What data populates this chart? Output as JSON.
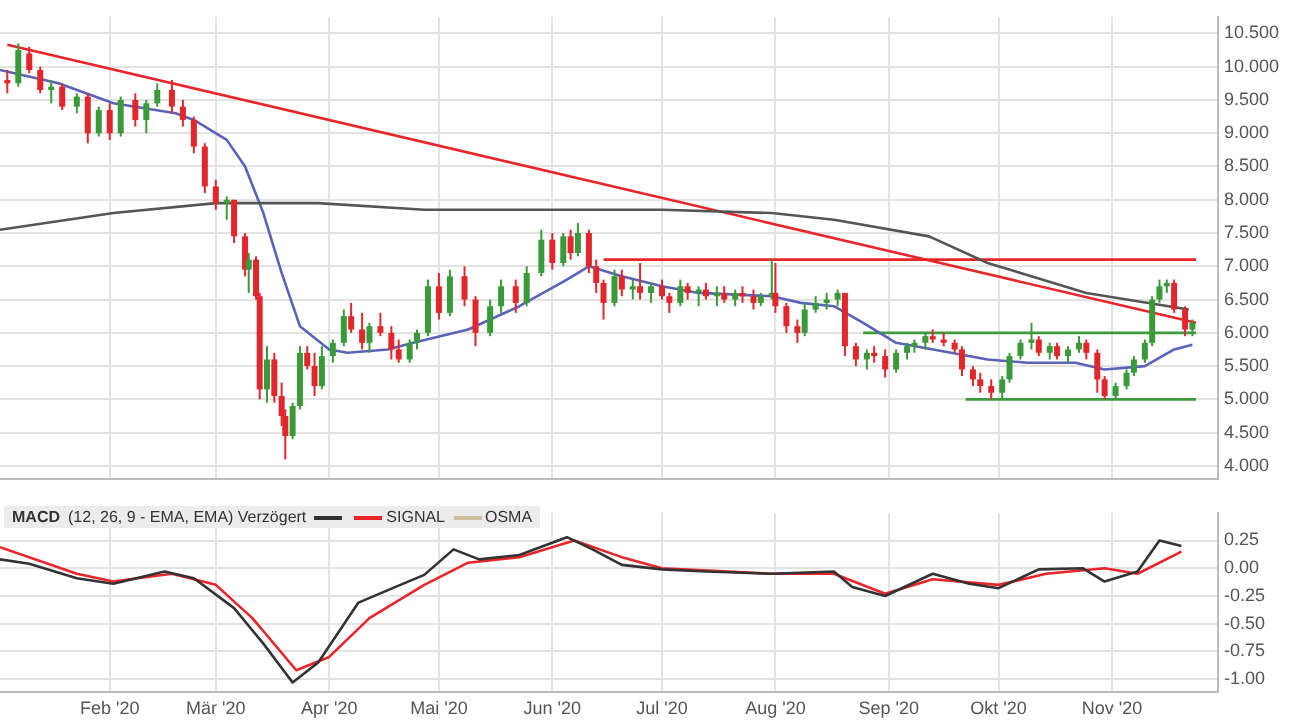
{
  "chart_data": [
    {
      "type": "candlestick",
      "x": [
        "2020-01-04",
        "2020-01-07",
        "2020-01-10",
        "2020-01-13",
        "2020-01-16",
        "2020-01-19",
        "2020-01-23",
        "2020-01-26",
        "2020-01-29",
        "2020-02-01",
        "2020-02-04",
        "2020-02-08",
        "2020-02-11",
        "2020-02-14",
        "2020-02-18",
        "2020-02-21",
        "2020-02-24",
        "2020-02-27",
        "2020-03-01",
        "2020-03-04",
        "2020-03-06",
        "2020-03-09",
        "2020-03-10",
        "2020-03-12",
        "2020-03-13",
        "2020-03-15",
        "2020-03-17",
        "2020-03-19",
        "2020-03-20",
        "2020-03-22",
        "2020-03-24",
        "2020-03-26",
        "2020-03-28",
        "2020-03-30",
        "2020-04-02",
        "2020-04-05",
        "2020-04-07",
        "2020-04-10",
        "2020-04-12",
        "2020-04-15",
        "2020-04-18",
        "2020-04-20",
        "2020-04-23",
        "2020-04-25",
        "2020-04-28",
        "2020-05-01",
        "2020-05-04",
        "2020-05-08",
        "2020-05-11",
        "2020-05-15",
        "2020-05-18",
        "2020-05-22",
        "2020-05-25",
        "2020-05-29",
        "2020-06-01",
        "2020-06-04",
        "2020-06-06",
        "2020-06-08",
        "2020-06-11",
        "2020-06-13",
        "2020-06-15",
        "2020-06-18",
        "2020-06-20",
        "2020-06-23",
        "2020-06-25",
        "2020-06-28",
        "2020-07-01",
        "2020-07-03",
        "2020-07-06",
        "2020-07-08",
        "2020-07-11",
        "2020-07-13",
        "2020-07-16",
        "2020-07-18",
        "2020-07-21",
        "2020-07-23",
        "2020-07-26",
        "2020-07-28",
        "2020-07-31",
        "2020-08-01",
        "2020-08-04",
        "2020-08-07",
        "2020-08-09",
        "2020-08-12",
        "2020-08-15",
        "2020-08-18",
        "2020-08-20",
        "2020-08-23",
        "2020-08-26",
        "2020-08-28",
        "2020-08-31",
        "2020-09-03",
        "2020-09-06",
        "2020-09-08",
        "2020-09-11",
        "2020-09-13",
        "2020-09-16",
        "2020-09-19",
        "2020-09-21",
        "2020-09-24",
        "2020-09-26",
        "2020-09-29",
        "2020-10-02",
        "2020-10-04",
        "2020-10-07",
        "2020-10-10",
        "2020-10-12",
        "2020-10-15",
        "2020-10-17",
        "2020-10-20",
        "2020-10-23",
        "2020-10-25",
        "2020-10-28",
        "2020-10-30",
        "2020-11-02",
        "2020-11-05",
        "2020-11-07",
        "2020-11-10",
        "2020-11-12",
        "2020-11-14",
        "2020-11-16",
        "2020-11-18",
        "2020-11-21",
        "2020-11-23"
      ],
      "ohlc": [
        [
          9.8,
          9.95,
          9.6,
          9.75
        ],
        [
          9.75,
          10.35,
          9.7,
          10.25
        ],
        [
          10.2,
          10.3,
          9.9,
          9.95
        ],
        [
          9.95,
          10.0,
          9.6,
          9.65
        ],
        [
          9.65,
          9.8,
          9.45,
          9.7
        ],
        [
          9.7,
          9.75,
          9.35,
          9.4
        ],
        [
          9.4,
          9.6,
          9.3,
          9.55
        ],
        [
          9.55,
          9.6,
          8.85,
          9.0
        ],
        [
          9.0,
          9.4,
          8.95,
          9.35
        ],
        [
          9.35,
          9.45,
          8.9,
          9.0
        ],
        [
          9.0,
          9.55,
          8.95,
          9.5
        ],
        [
          9.5,
          9.6,
          9.1,
          9.2
        ],
        [
          9.2,
          9.5,
          9.0,
          9.45
        ],
        [
          9.45,
          9.75,
          9.4,
          9.65
        ],
        [
          9.65,
          9.8,
          9.3,
          9.4
        ],
        [
          9.4,
          9.5,
          9.1,
          9.2
        ],
        [
          9.2,
          9.25,
          8.7,
          8.8
        ],
        [
          8.8,
          8.85,
          8.1,
          8.2
        ],
        [
          8.2,
          8.3,
          7.85,
          7.95
        ],
        [
          7.95,
          8.05,
          7.7,
          8.0
        ],
        [
          8.0,
          8.0,
          7.35,
          7.45
        ],
        [
          7.45,
          7.5,
          6.85,
          6.95
        ],
        [
          6.95,
          7.2,
          6.6,
          7.1
        ],
        [
          7.1,
          7.15,
          6.5,
          6.55
        ],
        [
          6.55,
          6.6,
          5.0,
          5.15
        ],
        [
          5.15,
          5.8,
          4.95,
          5.6
        ],
        [
          5.6,
          5.7,
          4.95,
          5.05
        ],
        [
          5.05,
          5.25,
          4.6,
          4.75
        ],
        [
          4.75,
          4.85,
          4.1,
          4.45
        ],
        [
          4.45,
          4.95,
          4.4,
          4.9
        ],
        [
          4.9,
          5.8,
          4.85,
          5.7
        ],
        [
          5.7,
          5.8,
          5.45,
          5.5
        ],
        [
          5.5,
          5.7,
          5.05,
          5.2
        ],
        [
          5.2,
          5.8,
          5.15,
          5.65
        ],
        [
          5.65,
          5.9,
          5.55,
          5.85
        ],
        [
          5.85,
          6.35,
          5.8,
          6.25
        ],
        [
          6.25,
          6.45,
          6.0,
          6.05
        ],
        [
          6.05,
          6.3,
          5.75,
          5.85
        ],
        [
          5.85,
          6.15,
          5.7,
          6.1
        ],
        [
          6.1,
          6.3,
          5.95,
          6.0
        ],
        [
          6.0,
          6.1,
          5.6,
          5.75
        ],
        [
          5.75,
          5.9,
          5.55,
          5.6
        ],
        [
          5.6,
          5.9,
          5.55,
          5.85
        ],
        [
          5.85,
          6.05,
          5.75,
          6.0
        ],
        [
          6.0,
          6.8,
          5.95,
          6.7
        ],
        [
          6.7,
          6.9,
          6.2,
          6.3
        ],
        [
          6.3,
          6.95,
          6.25,
          6.85
        ],
        [
          6.85,
          7.0,
          6.4,
          6.5
        ],
        [
          6.5,
          6.55,
          5.8,
          6.0
        ],
        [
          6.0,
          6.5,
          5.95,
          6.4
        ],
        [
          6.4,
          6.8,
          6.3,
          6.7
        ],
        [
          6.7,
          6.8,
          6.3,
          6.45
        ],
        [
          6.45,
          7.0,
          6.4,
          6.9
        ],
        [
          6.9,
          7.55,
          6.85,
          7.4
        ],
        [
          7.4,
          7.5,
          6.95,
          7.05
        ],
        [
          7.05,
          7.5,
          7.0,
          7.45
        ],
        [
          7.45,
          7.55,
          7.1,
          7.2
        ],
        [
          7.2,
          7.65,
          7.15,
          7.5
        ],
        [
          7.5,
          7.55,
          6.9,
          7.0
        ],
        [
          7.0,
          7.1,
          6.6,
          6.75
        ],
        [
          6.75,
          6.8,
          6.2,
          6.45
        ],
        [
          6.45,
          6.95,
          6.4,
          6.85
        ],
        [
          6.85,
          6.95,
          6.55,
          6.65
        ],
        [
          6.65,
          6.8,
          6.5,
          6.7
        ],
        [
          6.7,
          7.05,
          6.5,
          6.6
        ],
        [
          6.6,
          6.75,
          6.45,
          6.7
        ],
        [
          6.7,
          6.8,
          6.5,
          6.55
        ],
        [
          6.55,
          6.6,
          6.3,
          6.45
        ],
        [
          6.45,
          6.8,
          6.4,
          6.7
        ],
        [
          6.7,
          6.75,
          6.5,
          6.6
        ],
        [
          6.6,
          6.7,
          6.4,
          6.65
        ],
        [
          6.65,
          6.75,
          6.5,
          6.55
        ],
        [
          6.55,
          6.7,
          6.4,
          6.6
        ],
        [
          6.6,
          6.7,
          6.45,
          6.5
        ],
        [
          6.5,
          6.65,
          6.4,
          6.6
        ],
        [
          6.6,
          6.7,
          6.45,
          6.55
        ],
        [
          6.55,
          6.65,
          6.35,
          6.45
        ],
        [
          6.45,
          6.6,
          6.4,
          6.55
        ],
        [
          6.55,
          7.1,
          6.5,
          6.6
        ],
        [
          6.6,
          7.05,
          6.3,
          6.4
        ],
        [
          6.4,
          6.45,
          6.0,
          6.1
        ],
        [
          6.1,
          6.2,
          5.85,
          6.0
        ],
        [
          6.0,
          6.45,
          5.95,
          6.35
        ],
        [
          6.35,
          6.55,
          6.3,
          6.45
        ],
        [
          6.45,
          6.6,
          6.35,
          6.5
        ],
        [
          6.5,
          6.65,
          6.4,
          6.6
        ],
        [
          6.6,
          6.6,
          5.65,
          5.8
        ],
        [
          5.8,
          5.85,
          5.5,
          5.6
        ],
        [
          5.6,
          5.75,
          5.45,
          5.7
        ],
        [
          5.7,
          5.8,
          5.55,
          5.65
        ],
        [
          5.65,
          5.75,
          5.33,
          5.45
        ],
        [
          5.45,
          5.75,
          5.4,
          5.7
        ],
        [
          5.7,
          5.85,
          5.6,
          5.8
        ],
        [
          5.8,
          5.9,
          5.7,
          5.85
        ],
        [
          5.85,
          6.0,
          5.75,
          5.95
        ],
        [
          5.95,
          6.05,
          5.85,
          5.9
        ],
        [
          5.9,
          6.0,
          5.8,
          5.85
        ],
        [
          5.85,
          5.9,
          5.7,
          5.75
        ],
        [
          5.75,
          5.8,
          5.35,
          5.45
        ],
        [
          5.45,
          5.5,
          5.2,
          5.3
        ],
        [
          5.3,
          5.4,
          5.1,
          5.2
        ],
        [
          5.2,
          5.3,
          5.0,
          5.1
        ],
        [
          5.1,
          5.35,
          5.0,
          5.3
        ],
        [
          5.3,
          5.7,
          5.25,
          5.65
        ],
        [
          5.65,
          5.9,
          5.6,
          5.85
        ],
        [
          5.85,
          6.15,
          5.75,
          5.9
        ],
        [
          5.9,
          5.95,
          5.65,
          5.7
        ],
        [
          5.7,
          5.85,
          5.6,
          5.8
        ],
        [
          5.8,
          5.85,
          5.6,
          5.65
        ],
        [
          5.65,
          5.8,
          5.55,
          5.75
        ],
        [
          5.75,
          5.95,
          5.7,
          5.85
        ],
        [
          5.85,
          5.9,
          5.6,
          5.7
        ],
        [
          5.7,
          5.75,
          5.1,
          5.3
        ],
        [
          5.3,
          5.35,
          5.0,
          5.05
        ],
        [
          5.05,
          5.25,
          5.0,
          5.2
        ],
        [
          5.2,
          5.45,
          5.15,
          5.4
        ],
        [
          5.4,
          5.65,
          5.35,
          5.6
        ],
        [
          5.6,
          5.9,
          5.55,
          5.85
        ],
        [
          5.85,
          6.55,
          5.8,
          6.5
        ],
        [
          6.5,
          6.8,
          6.45,
          6.7
        ],
        [
          6.7,
          6.8,
          6.6,
          6.75
        ],
        [
          6.75,
          6.8,
          6.3,
          6.35
        ],
        [
          6.35,
          6.4,
          5.95,
          6.05
        ],
        [
          6.05,
          6.2,
          5.95,
          6.15
        ]
      ],
      "series": [
        {
          "type": "line",
          "color": "#555555",
          "x": [
            "2020-01-02",
            "2020-02-02",
            "2020-03-01",
            "2020-03-29",
            "2020-04-27",
            "2020-06-05",
            "2020-07-01",
            "2020-07-31",
            "2020-08-17",
            "2020-09-12",
            "2020-09-28",
            "2020-10-25",
            "2020-11-22"
          ],
          "values": [
            7.55,
            7.8,
            7.95,
            7.95,
            7.85,
            7.85,
            7.85,
            7.8,
            7.7,
            7.45,
            7.05,
            6.6,
            6.35
          ]
        },
        {
          "type": "line",
          "color": "#5a63b8",
          "x": [
            "2020-01-02",
            "2020-01-18",
            "2020-02-02",
            "2020-02-19",
            "2020-02-24",
            "2020-03-04",
            "2020-03-09",
            "2020-03-14",
            "2020-03-19",
            "2020-03-24",
            "2020-04-01",
            "2020-04-06",
            "2020-04-17",
            "2020-04-24",
            "2020-05-09",
            "2020-05-23",
            "2020-06-05",
            "2020-06-11",
            "2020-06-20",
            "2020-07-01",
            "2020-07-11",
            "2020-07-31",
            "2020-08-08",
            "2020-08-17",
            "2020-08-25",
            "2020-09-03",
            "2020-09-18",
            "2020-09-28",
            "2020-10-09",
            "2020-10-22",
            "2020-10-30",
            "2020-11-10",
            "2020-11-18",
            "2020-11-23"
          ],
          "values": [
            9.95,
            9.75,
            9.45,
            9.3,
            9.2,
            8.9,
            8.5,
            7.8,
            6.9,
            6.1,
            5.75,
            5.7,
            5.75,
            5.85,
            6.05,
            6.4,
            6.8,
            7.0,
            6.85,
            6.7,
            6.6,
            6.55,
            6.45,
            6.4,
            6.15,
            5.85,
            5.7,
            5.6,
            5.55,
            5.55,
            5.45,
            5.5,
            5.75,
            5.82
          ]
        },
        {
          "type": "line",
          "color": "#e8262a",
          "x": [
            "2020-01-04",
            "2020-11-24"
          ],
          "values": [
            10.33,
            6.15
          ]
        },
        {
          "type": "line",
          "color": "#e8262a",
          "x": [
            "2020-06-15",
            "2020-11-24"
          ],
          "values": [
            7.1,
            7.1
          ]
        },
        {
          "type": "line",
          "color": "#3c9b3c",
          "x": [
            "2020-08-25",
            "2020-11-24"
          ],
          "values": [
            6.0,
            6.0
          ]
        },
        {
          "type": "line",
          "color": "#3c9b3c",
          "x": [
            "2020-09-22",
            "2020-11-24"
          ],
          "values": [
            5.0,
            5.0
          ]
        }
      ],
      "xlim": [
        "2020-01-02",
        "2020-11-30"
      ],
      "xticks": [
        "2020-02-01",
        "2020-03-01",
        "2020-04-01",
        "2020-05-01",
        "2020-06-01",
        "2020-07-01",
        "2020-08-01",
        "2020-09-01",
        "2020-10-01",
        "2020-11-01"
      ],
      "ylim": [
        3.8,
        10.75
      ],
      "yticks": [
        {
          "value": 4,
          "label": "4.000"
        },
        {
          "value": 4.5,
          "label": "4.500"
        },
        {
          "value": 5,
          "label": "5.000"
        },
        {
          "value": 5.5,
          "label": "5.500"
        },
        {
          "value": 6,
          "label": "6.000"
        },
        {
          "value": 6.5,
          "label": "6.500"
        },
        {
          "value": 7,
          "label": "7.000"
        },
        {
          "value": 7.5,
          "label": "7.500"
        },
        {
          "value": 8,
          "label": "8.000"
        },
        {
          "value": 8.5,
          "label": "8.500"
        },
        {
          "value": 9,
          "label": "9.000"
        },
        {
          "value": 9.5,
          "label": "9.500"
        },
        {
          "value": 10,
          "label": "10.000"
        },
        {
          "value": 10.5,
          "label": "10.500"
        }
      ],
      "grid": true,
      "tick_labels": "y"
    },
    {
      "type": "line",
      "title": "MACD",
      "legend_title": "(12, 26, 9 - EMA, EMA) Verzögert",
      "series": [
        {
          "color": "#333333",
          "x": [
            "2020-01-02",
            "2020-01-10",
            "2020-01-23",
            "2020-02-02",
            "2020-02-16",
            "2020-02-24",
            "2020-03-06",
            "2020-03-14",
            "2020-03-22",
            "2020-03-29",
            "2020-04-09",
            "2020-04-19",
            "2020-04-27",
            "2020-05-05",
            "2020-05-12",
            "2020-05-23",
            "2020-06-05",
            "2020-06-12",
            "2020-06-20",
            "2020-07-01",
            "2020-07-13",
            "2020-07-31",
            "2020-08-17",
            "2020-08-22",
            "2020-08-31",
            "2020-09-13",
            "2020-09-23",
            "2020-10-01",
            "2020-10-12",
            "2020-10-24",
            "2020-10-30",
            "2020-11-08",
            "2020-11-14",
            "2020-11-20"
          ],
          "values": [
            0.08,
            0.04,
            -0.09,
            -0.14,
            -0.03,
            -0.09,
            -0.36,
            -0.68,
            -1.03,
            -0.85,
            -0.31,
            -0.17,
            -0.06,
            0.17,
            0.08,
            0.12,
            0.28,
            0.17,
            0.03,
            -0.01,
            -0.03,
            -0.05,
            -0.03,
            -0.17,
            -0.25,
            -0.05,
            -0.14,
            -0.18,
            -0.01,
            0.0,
            -0.12,
            -0.03,
            0.25,
            0.2
          ]
        },
        {
          "name": "SIGNAL",
          "color": "#e8262a",
          "x": [
            "2020-01-02",
            "2020-01-23",
            "2020-02-02",
            "2020-02-18",
            "2020-03-01",
            "2020-03-11",
            "2020-03-23",
            "2020-04-01",
            "2020-04-12",
            "2020-04-27",
            "2020-05-09",
            "2020-05-23",
            "2020-06-07",
            "2020-06-20",
            "2020-07-01",
            "2020-07-31",
            "2020-08-17",
            "2020-08-31",
            "2020-09-13",
            "2020-10-01",
            "2020-10-14",
            "2020-10-30",
            "2020-11-08",
            "2020-11-20"
          ],
          "values": [
            0.19,
            -0.05,
            -0.12,
            -0.05,
            -0.15,
            -0.45,
            -0.92,
            -0.8,
            -0.45,
            -0.15,
            0.05,
            0.1,
            0.25,
            0.1,
            0.0,
            -0.05,
            -0.05,
            -0.23,
            -0.1,
            -0.15,
            -0.05,
            0.0,
            -0.05,
            0.15
          ]
        },
        {
          "name": "OSMA",
          "color": "#cdbf9e"
        }
      ],
      "xlim": [
        "2020-01-02",
        "2020-11-30"
      ],
      "xticks": [
        {
          "value": "2020-02-01",
          "label": "Feb '20"
        },
        {
          "value": "2020-03-01",
          "label": "Mär '20"
        },
        {
          "value": "2020-04-01",
          "label": "Apr '20"
        },
        {
          "value": "2020-05-01",
          "label": "Mai '20"
        },
        {
          "value": "2020-06-01",
          "label": "Jun '20"
        },
        {
          "value": "2020-07-01",
          "label": "Jul '20"
        },
        {
          "value": "2020-08-01",
          "label": "Aug '20"
        },
        {
          "value": "2020-09-01",
          "label": "Sep '20"
        },
        {
          "value": "2020-10-01",
          "label": "Okt '20"
        },
        {
          "value": "2020-11-01",
          "label": "Nov '20"
        }
      ],
      "ylim": [
        -1.12,
        0.5
      ],
      "yticks": [
        {
          "value": -1,
          "label": "-1.00"
        },
        {
          "value": -0.75,
          "label": "-0.75"
        },
        {
          "value": -0.5,
          "label": "-0.50"
        },
        {
          "value": -0.25,
          "label": "-0.25"
        },
        {
          "value": 0,
          "label": "0.00"
        },
        {
          "value": 0.25,
          "label": "0.25"
        }
      ],
      "grid": true,
      "legend": "top left"
    }
  ]
}
